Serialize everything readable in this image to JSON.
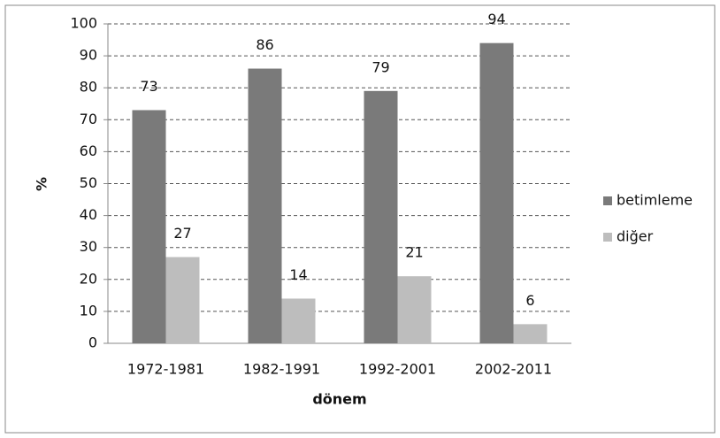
{
  "chart_data": {
    "type": "bar",
    "x_label": "dönem",
    "y_label": "%",
    "categories": [
      "1972-1981",
      "1982-1991",
      "1992-2001",
      "2002-2011"
    ],
    "series": [
      {
        "name": "betimleme",
        "color": "#7a7a7a",
        "values": [
          73,
          86,
          79,
          94
        ]
      },
      {
        "name": "diğer",
        "color": "#bdbdbd",
        "values": [
          27,
          14,
          21,
          6
        ]
      }
    ],
    "ylim": [
      0,
      100
    ],
    "yticks": [
      0,
      10,
      20,
      30,
      40,
      50,
      60,
      70,
      80,
      90,
      100
    ],
    "grid": true,
    "legend": "right"
  }
}
